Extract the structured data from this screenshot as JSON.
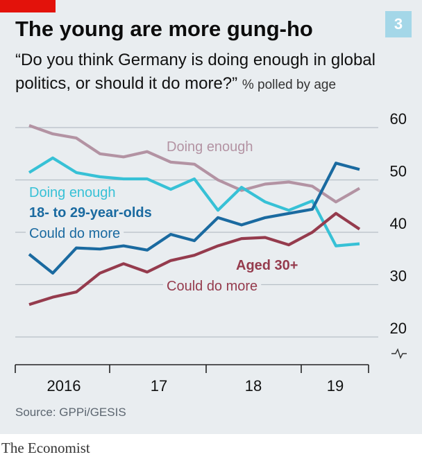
{
  "header": {
    "chart_number": "3",
    "title": "The young are more gung-ho",
    "subtitle": "“Do you think Germany is doing enough in global politics, or should it do more?”",
    "units": "% polled by age"
  },
  "footer": {
    "source": "Source: GPPi/GESIS",
    "brand": "The Economist"
  },
  "colors": {
    "young_enough": "#37c1d6",
    "young_more": "#1a6aa0",
    "older_enough": "#b393a3",
    "older_more": "#953b4d",
    "gridline": "#b7c0c7",
    "panel": "#e9edf0",
    "accent": "#e3120b"
  },
  "chart_data": {
    "type": "line",
    "title": "The young are more gung-ho",
    "subtitle": "“Do you think Germany is doing enough in global politics, or should it do more?” % polled by age",
    "x_tick_labels": [
      "2016",
      "17",
      "18",
      "19"
    ],
    "ylim": [
      20,
      60
    ],
    "y_ticks": [
      20,
      30,
      40,
      50,
      60
    ],
    "axis_break": true,
    "grid": true,
    "group_labels": [
      {
        "text": "18- to 29-year-olds",
        "color": "#1a6aa0"
      },
      {
        "text": "Aged 30+",
        "color": "#953b4d"
      }
    ],
    "series": [
      {
        "key": "young_enough",
        "name": "Doing enough",
        "group": "18- to 29-year-olds",
        "color": "#37c1d6",
        "values": [
          51.4,
          54.2,
          51.4,
          50.6,
          50.2,
          50.2,
          48.2,
          50.2,
          44.2,
          48.6,
          45.8,
          44.2,
          46.0,
          37.4,
          37.8
        ]
      },
      {
        "key": "young_more",
        "name": "Could do more",
        "group": "18- to 29-year-olds",
        "color": "#1a6aa0",
        "values": [
          35.8,
          32.2,
          37.0,
          36.8,
          37.4,
          36.6,
          39.6,
          38.4,
          42.8,
          41.4,
          42.8,
          43.6,
          44.4,
          53.2,
          52.0
        ]
      },
      {
        "key": "older_enough",
        "name": "Doing enough",
        "group": "Aged 30+",
        "color": "#b393a3",
        "values": [
          60.4,
          58.8,
          58.0,
          55.0,
          54.4,
          55.4,
          53.4,
          53.0,
          50.0,
          48.0,
          49.2,
          49.6,
          48.8,
          45.8,
          48.4
        ]
      },
      {
        "key": "older_more",
        "name": "Could do more",
        "group": "Aged 30+",
        "color": "#953b4d",
        "values": [
          26.2,
          27.6,
          28.6,
          32.2,
          34.0,
          32.4,
          34.6,
          35.6,
          37.4,
          38.8,
          39.0,
          37.6,
          40.0,
          43.6,
          40.6
        ]
      }
    ]
  }
}
